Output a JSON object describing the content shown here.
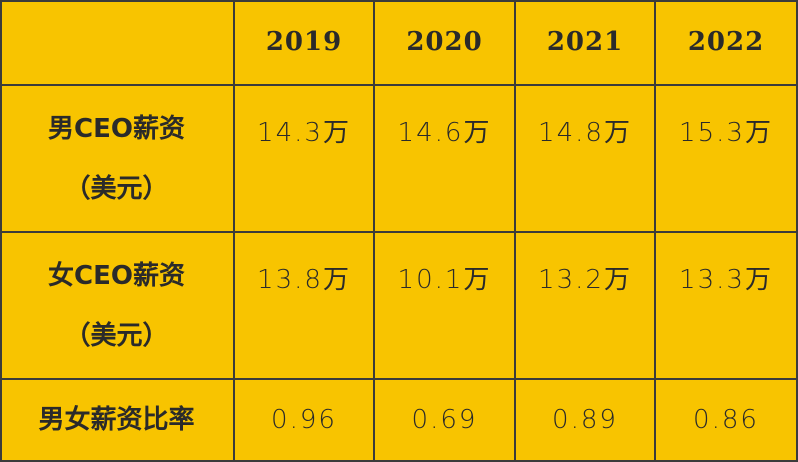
{
  "table": {
    "columns": [
      "2019",
      "2020",
      "2021",
      "2022"
    ],
    "rows": [
      {
        "label": [
          "男CEO薪资",
          "（美元）"
        ],
        "cells": [
          "14.3万",
          "14.6万",
          "14.8万",
          "15.3万"
        ]
      },
      {
        "label": [
          "女CEO薪资",
          "（美元）"
        ],
        "cells": [
          "13.8万",
          "10.1万",
          "13.2万",
          "13.3万"
        ]
      },
      {
        "label": [
          "男女薪资比率"
        ],
        "cells": [
          "0.96",
          "0.69",
          "0.89",
          "0.86"
        ]
      }
    ]
  }
}
